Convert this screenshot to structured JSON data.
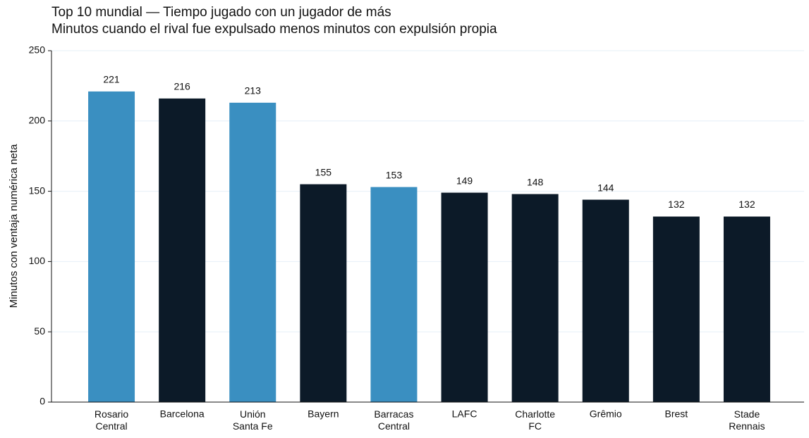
{
  "chart_data": {
    "type": "bar",
    "title": "Top 10 mundial — Tiempo jugado con un jugador de más",
    "subtitle": "Minutos cuando el rival fue expulsado menos minutos con expulsión propia",
    "y_label": "Minutos con ventaja numérica neta",
    "categories": [
      "Rosario\nCentral",
      "Barcelona",
      "Unión\nSanta Fe",
      "Bayern",
      "Barracas\nCentral",
      "LAFC",
      "Charlotte\nFC",
      "Grêmio",
      "Brest",
      "Stade\nRennais"
    ],
    "values": [
      221,
      216,
      213,
      155,
      153,
      149,
      148,
      144,
      132,
      132
    ],
    "colors": [
      "#3a8fc1",
      "#0c1a28",
      "#3a8fc1",
      "#0c1a28",
      "#3a8fc1",
      "#0c1a28",
      "#0c1a28",
      "#0c1a28",
      "#0c1a28",
      "#0c1a28"
    ],
    "ylim": [
      0,
      250
    ],
    "yticks": [
      0,
      50,
      100,
      150,
      200,
      250
    ],
    "grid": true
  }
}
